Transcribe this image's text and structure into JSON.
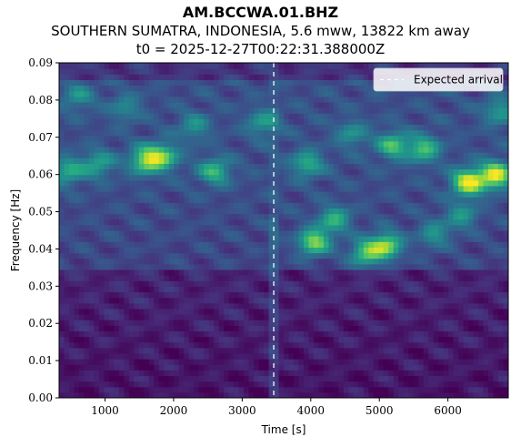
{
  "title": "AM.BCCWA.01.BHZ",
  "subtitle": "SOUTHERN SUMATRA, INDONESIA, 5.6 mww, 13822 km away",
  "subtitle2": "t0 = 2025-12-27T00:22:31.388000Z",
  "chart_data": {
    "type": "heatmap",
    "xlabel": "Time [s]",
    "ylabel": "Frequency [Hz]",
    "xlim": [
      330,
      6880
    ],
    "ylim": [
      0.0,
      0.09
    ],
    "x_ticks": [
      1000,
      2000,
      3000,
      4000,
      5000,
      6000
    ],
    "x_tick_labels": [
      "1000",
      "2000",
      "3000",
      "4000",
      "5000",
      "6000"
    ],
    "y_ticks": [
      0.0,
      0.01,
      0.02,
      0.03,
      0.04,
      0.05,
      0.06,
      0.07,
      0.08,
      0.09
    ],
    "y_tick_labels": [
      "0.00",
      "0.01",
      "0.02",
      "0.03",
      "0.04",
      "0.05",
      "0.06",
      "0.07",
      "0.08",
      "0.09"
    ],
    "colormap": "viridis",
    "expected_arrival": {
      "x": 3460,
      "label": "Expected arrival",
      "color": "#ffffff",
      "style": "dashed"
    },
    "legend": {
      "position": "top-right",
      "entries": [
        "Expected arrival"
      ]
    },
    "hotspots": [
      {
        "t": 6300,
        "f": 0.058,
        "intensity": 1.0
      },
      {
        "t": 6700,
        "f": 0.06,
        "intensity": 0.95
      },
      {
        "t": 4050,
        "f": 0.042,
        "intensity": 0.8
      },
      {
        "t": 5100,
        "f": 0.041,
        "intensity": 0.8
      },
      {
        "t": 4800,
        "f": 0.039,
        "intensity": 0.65
      },
      {
        "t": 1600,
        "f": 0.064,
        "intensity": 0.75
      },
      {
        "t": 1850,
        "f": 0.065,
        "intensity": 0.6
      },
      {
        "t": 2600,
        "f": 0.061,
        "intensity": 0.55
      },
      {
        "t": 5200,
        "f": 0.068,
        "intensity": 0.6
      },
      {
        "t": 5650,
        "f": 0.067,
        "intensity": 0.6
      },
      {
        "t": 3950,
        "f": 0.063,
        "intensity": 0.5
      },
      {
        "t": 460,
        "f": 0.061,
        "intensity": 0.5
      },
      {
        "t": 900,
        "f": 0.063,
        "intensity": 0.45
      },
      {
        "t": 4350,
        "f": 0.048,
        "intensity": 0.55
      },
      {
        "t": 6200,
        "f": 0.049,
        "intensity": 0.4
      },
      {
        "t": 2300,
        "f": 0.073,
        "intensity": 0.35
      },
      {
        "t": 3300,
        "f": 0.074,
        "intensity": 0.4
      },
      {
        "t": 6750,
        "f": 0.077,
        "intensity": 0.4
      },
      {
        "t": 1300,
        "f": 0.078,
        "intensity": 0.3
      },
      {
        "t": 4600,
        "f": 0.071,
        "intensity": 0.35
      },
      {
        "t": 600,
        "f": 0.081,
        "intensity": 0.35
      },
      {
        "t": 5800,
        "f": 0.044,
        "intensity": 0.4
      }
    ]
  }
}
